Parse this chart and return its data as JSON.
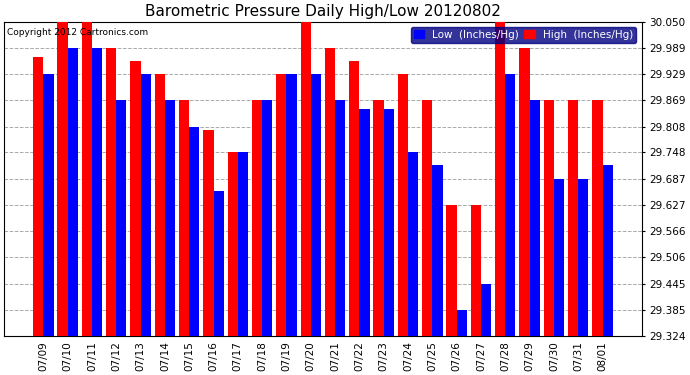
{
  "title": "Barometric Pressure Daily High/Low 20120802",
  "copyright": "Copyright 2012 Cartronics.com",
  "legend_low": "Low  (Inches/Hg)",
  "legend_high": "High  (Inches/Hg)",
  "ylim": [
    29.324,
    30.05
  ],
  "yticks": [
    29.324,
    29.385,
    29.445,
    29.506,
    29.566,
    29.627,
    29.687,
    29.748,
    29.808,
    29.869,
    29.929,
    29.989,
    30.05
  ],
  "categories": [
    "07/09",
    "07/10",
    "07/11",
    "07/12",
    "07/13",
    "07/14",
    "07/15",
    "07/16",
    "07/17",
    "07/18",
    "07/19",
    "07/20",
    "07/21",
    "07/22",
    "07/23",
    "07/24",
    "07/25",
    "07/26",
    "07/27",
    "07/28",
    "07/29",
    "07/30",
    "07/31",
    "08/01"
  ],
  "low": [
    29.929,
    29.989,
    29.989,
    29.869,
    29.929,
    29.869,
    29.808,
    29.66,
    29.748,
    29.869,
    29.929,
    29.929,
    29.869,
    29.848,
    29.848,
    29.748,
    29.718,
    29.385,
    29.445,
    29.929,
    29.869,
    29.687,
    29.687,
    29.718
  ],
  "high": [
    29.969,
    30.05,
    30.05,
    29.989,
    29.959,
    29.929,
    29.869,
    29.8,
    29.748,
    29.869,
    29.929,
    30.05,
    29.989,
    29.96,
    29.869,
    29.929,
    29.869,
    29.627,
    29.627,
    30.05,
    29.989,
    29.869,
    29.869,
    29.869
  ],
  "low_color": "#0000ff",
  "high_color": "#ff0000",
  "bg_color": "#ffffff",
  "grid_color": "#aaaaaa",
  "ybaseline": 29.324,
  "bar_width": 0.42,
  "title_fontsize": 11,
  "tick_fontsize": 7.5,
  "legend_fontsize": 7.5
}
